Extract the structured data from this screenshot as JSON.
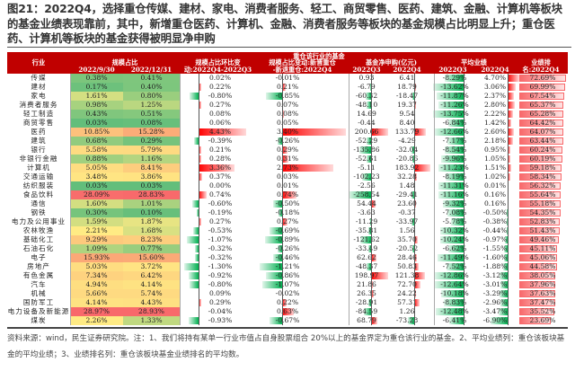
{
  "title": "图21：2022Q4，选择重仓传媒、建材、家电、消费者服务、轻工、商贸零售、医药、建筑、金融、计算机等板块的基金业绩表现靠前，其中，新增重仓医药、计算机、金融、消费者服务等板块的基金规模占比明显上升；重仓医药、计算机等板块的基金获得被明显净申购",
  "header": {
    "group": "重仓该行业的基金",
    "industry": "行业",
    "scale_share": "规模占比",
    "scale_q3": "2022/9/30",
    "scale_q4": "2022/12/31",
    "qoq_change_l1": "规模占比环比变",
    "qoq_change_l2": "动:2022Q4-2022Q3",
    "new_change_l1": "规模占比变动:新晋重仓",
    "new_change_l2": "-新退重仓:2022Q4",
    "net_sub": "基金净申购(亿元)",
    "net_sub_q3": "2022Q3",
    "net_sub_q4": "2022Q4",
    "avg_perf": "平均业绩",
    "avg_q3": "2022Q3",
    "avg_q4": "2022Q4",
    "rank_l1": "业绩排",
    "rank_l2": "名:2022Q4"
  },
  "colors": {
    "header_bg": "#C00000",
    "positive_bar": "#FF0000",
    "negative_bar": "#00B050",
    "heat_low": "#63BE7B",
    "heat_mid": "#FFEB84",
    "heat_high": "#F8696B"
  },
  "rows": [
    {
      "name": "传媒",
      "s1": "0.38%",
      "s2": "0.41%",
      "d1": "0.02%",
      "d2": "-0.01%",
      "f1": "0.93",
      "f2": "6.41",
      "p1": "-8.29%",
      "p2": "4.70%",
      "r": "72.69%"
    },
    {
      "name": "建材",
      "s1": "0.17%",
      "s2": "0.40%",
      "d1": "0.22%",
      "d2": "0.21%",
      "f1": "-6.79",
      "f2": "18.79",
      "p1": "-13.62%",
      "p2": "3.06%",
      "r": "69.99%"
    },
    {
      "name": "家电",
      "s1": "1.61%",
      "s2": "0.80%",
      "d1": "-0.80%",
      "d2": "-0.85%",
      "f1": "-60.32",
      "f2": "-18.47",
      "p1": "-11.87%",
      "p2": "2.37%",
      "r": "67.54%"
    },
    {
      "name": "消费者服务",
      "s1": "0.98%",
      "s2": "1.25%",
      "d1": "0.27%",
      "d2": "0.07%",
      "f1": "-48.10",
      "f2": "19.37",
      "p1": "-11.26%",
      "p2": "2.80%",
      "r": "65.37%"
    },
    {
      "name": "轻工制造",
      "s1": "0.43%",
      "s2": "0.51%",
      "d1": "0.08%",
      "d2": "0.08%",
      "f1": "14.69",
      "f2": "9.54",
      "p1": "-13.75%",
      "p2": "2.22%",
      "r": "65.28%"
    },
    {
      "name": "商贸零售",
      "s1": "0.03%",
      "s2": "0.08%",
      "d1": "0.06%",
      "d2": "0.05%",
      "f1": "-0.44",
      "f2": "8.40",
      "p1": "-6.84%",
      "p2": "1.42%",
      "r": "64.42%"
    },
    {
      "name": "医药",
      "s1": "10.85%",
      "s2": "15.28%",
      "d1": "4.43%",
      "d2": "3.40%",
      "f1": "200.66",
      "f2": "133.79",
      "p1": "-12.66%",
      "p2": "2.60%",
      "r": "64.07%"
    },
    {
      "name": "建筑",
      "s1": "0.68%",
      "s2": "0.29%",
      "d1": "-0.39%",
      "d2": "-0.26%",
      "f1": "-52.29",
      "f2": "-4.29",
      "p1": "-7.17%",
      "p2": "2.18%",
      "r": "63.44%"
    },
    {
      "name": "银行",
      "s1": "5.58%",
      "s2": "5.79%",
      "d1": "0.21%",
      "d2": "0.29%",
      "f1": "-135.86",
      "f2": "-32.04",
      "p1": "-8.54%",
      "p2": "0.95%",
      "r": "60.24%"
    },
    {
      "name": "非银行金融",
      "s1": "0.88%",
      "s2": "1.16%",
      "d1": "0.28%",
      "d2": "0.31%",
      "f1": "-52.61",
      "f2": "-20.86",
      "p1": "-9.96%",
      "p2": "1.05%",
      "r": "60.19%"
    },
    {
      "name": "计算机",
      "s1": "5.05%",
      "s2": "8.41%",
      "d1": "3.36%",
      "d2": "2.73%",
      "f1": "-5.11",
      "f2": "183.92",
      "p1": "-11.23%",
      "p2": "1.51%",
      "r": "59.18%"
    },
    {
      "name": "交通运输",
      "s1": "3.48%",
      "s2": "3.86%",
      "d1": "0.37%",
      "d2": "0.03%",
      "f1": "-102.23",
      "f2": "32.28",
      "p1": "-8.19%",
      "p2": "1.02%",
      "r": "58.34%"
    },
    {
      "name": "纺织服装",
      "s1": "0.03%",
      "s2": "0.03%",
      "d1": "0.00%",
      "d2": "0.01%",
      "f1": "-2.56",
      "f2": "1.48",
      "p1": "-11.31%",
      "p2": "0.01%",
      "r": "56.32%"
    },
    {
      "name": "食品饮料",
      "s1": "28.09%",
      "s2": "28.83%",
      "d1": "0.74%",
      "d2": "0.74%",
      "f1": "-258.54",
      "f2": "-29.41",
      "p1": "-11.16%",
      "p2": "0.16%",
      "r": "55.64%"
    },
    {
      "name": "通信",
      "s1": "1.60%",
      "s2": "1.01%",
      "d1": "-0.60%",
      "d2": "-0.50%",
      "f1": "54.44",
      "f2": "23.60",
      "p1": "-9.32%",
      "p2": "0.16%",
      "r": "55.18%"
    },
    {
      "name": "钢铁",
      "s1": "0.30%",
      "s2": "0.10%",
      "d1": "-0.19%",
      "d2": "-0.18%",
      "f1": "-3.63",
      "f2": "-0.37",
      "p1": "-7.08%",
      "p2": "-0.50%",
      "r": "54.35%"
    },
    {
      "name": "电力及公用事业",
      "s1": "1.59%",
      "s2": "1.87%",
      "d1": "0.27%",
      "d2": "0.27%",
      "f1": "-11.29",
      "f2": "-33.97",
      "p1": "-5.78%",
      "p2": "-0.38%",
      "r": "52.83%"
    },
    {
      "name": "农林牧渔",
      "s1": "2.21%",
      "s2": "1.68%",
      "d1": "-0.53%",
      "d2": "-0.69%",
      "f1": "-35.81",
      "f2": "1.56",
      "p1": "-10.32%",
      "p2": "-0.44%",
      "r": "51.43%"
    },
    {
      "name": "基础化工",
      "s1": "9.29%",
      "s2": "8.23%",
      "d1": "-1.07%",
      "d2": "-0.89%",
      "f1": "-121.62",
      "f2": "35.70",
      "p1": "-10.24%",
      "p2": "-0.97%",
      "r": "49.46%"
    },
    {
      "name": "石油石化",
      "s1": "1.09%",
      "s2": "0.77%",
      "d1": "-0.32%",
      "d2": "-0.26%",
      "f1": "-33.49",
      "f2": "-20.52",
      "p1": "-6.62%",
      "p2": "-1.55%",
      "r": "45.11%"
    },
    {
      "name": "电子",
      "s1": "15.93%",
      "s2": "15.60%",
      "d1": "-0.32%",
      "d2": "-0.46%",
      "f1": "62.62",
      "f2": "28.46",
      "p1": "-11.49%",
      "p2": "-1.60%",
      "r": "45.06%"
    },
    {
      "name": "房地产",
      "s1": "5.03%",
      "s2": "3.72%",
      "d1": "-1.30%",
      "d2": "-1.21%",
      "f1": "-48.37",
      "f2": "50.83",
      "p1": "-7.52%",
      "p2": "-1.88%",
      "r": "44.58%"
    },
    {
      "name": "有色金属",
      "s1": "7.34%",
      "s2": "6.42%",
      "d1": "-0.92%",
      "d2": "-0.86%",
      "f1": "198.97",
      "f2": "121.38",
      "p1": "-12.86%",
      "p2": "-3.12%",
      "r": "38.05%"
    },
    {
      "name": "汽车",
      "s1": "4.94%",
      "s2": "4.14%",
      "d1": "-0.80%",
      "d2": "-1.07%",
      "f1": "21.86",
      "f2": "72.70",
      "p1": "-12.64%",
      "p2": "-3.01%",
      "r": "37.96%"
    },
    {
      "name": "机械",
      "s1": "5.66%",
      "s2": "5.74%",
      "d1": "0.09%",
      "d2": "-0.02%",
      "f1": "26.35",
      "f2": "24.22",
      "p1": "-10.18%",
      "p2": "-3.29%",
      "r": "37.63%"
    },
    {
      "name": "国防军工",
      "s1": "4.14%",
      "s2": "4.43%",
      "d1": "0.29%",
      "d2": "0.22%",
      "f1": "-28.91",
      "f2": "57.31",
      "p1": "-8.83%",
      "p2": "-2.96%",
      "r": "37.47%"
    },
    {
      "name": "电力设备及新能源",
      "s1": "28.97%",
      "s2": "28.93%",
      "d1": "-0.04%",
      "d2": "0.63%",
      "f1": "-84.59",
      "f2": "1.26",
      "p1": "-12.48%",
      "p2": "-3.47%",
      "r": "35.52%"
    },
    {
      "name": "煤炭",
      "s1": "2.26%",
      "s2": "1.33%",
      "d1": "-0.93%",
      "d2": "-0.67%",
      "f1": "68.79",
      "f2": "-73.28",
      "p1": "-6.41%",
      "p2": "-6.90%",
      "r": "23.69%"
    }
  ],
  "footer": "资料来源：wind，民生证券研究院。注：1、我们将持有某单一行业市值占自身股票组合 20%以上的基金界定为重仓该行业的基金。2、平均业绩列：重仓该板块基金的平均业绩；3、业绩排名列：重仓该板块基金业绩排名的平均数。"
}
